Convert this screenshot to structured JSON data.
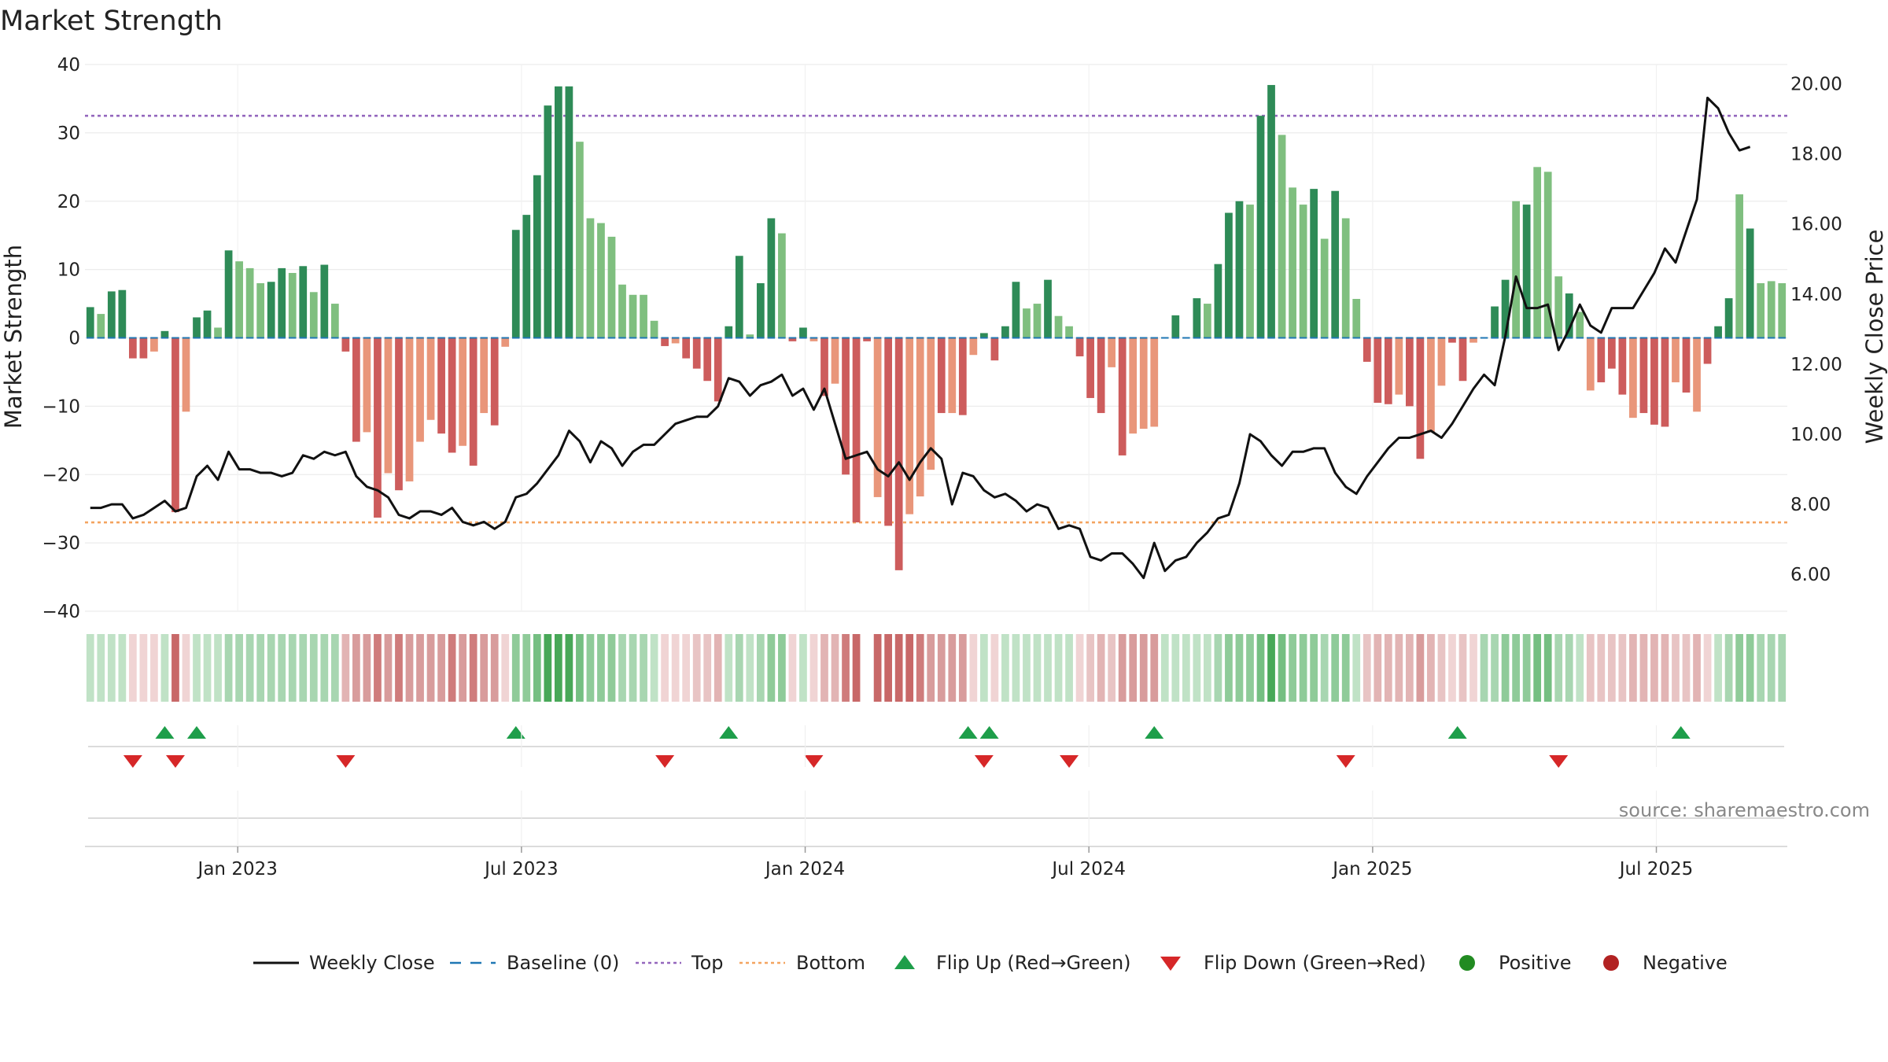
{
  "chart_data": {
    "type": "bar",
    "title": "Market Strength",
    "ylabel_left": "Market Strength",
    "ylabel_right": "Weekly Close Price",
    "ylim_left": [
      -40,
      40
    ],
    "ylim_right": [
      4.95,
      20.55
    ],
    "yticks_left": [
      40,
      30,
      20,
      10,
      0,
      -10,
      -20,
      -30,
      -40
    ],
    "yticks_left_labels": [
      "40",
      "30",
      "20",
      "10",
      "0",
      "−10",
      "−20",
      "−30",
      "−40"
    ],
    "yticks_right": [
      20,
      18,
      16,
      14,
      12,
      10,
      8,
      6
    ],
    "yticks_right_labels": [
      "20.00",
      "18.00",
      "16.00",
      "14.00",
      "12.00",
      "10.00",
      "8.00",
      "6.00"
    ],
    "x_range_weeks": [
      0,
      156
    ],
    "xticks": [
      {
        "label": "Jan 2023",
        "week": 14
      },
      {
        "label": "Jul 2023",
        "week": 40
      },
      {
        "label": "Jan 2024",
        "week": 66
      },
      {
        "label": "Jul 2024",
        "week": 92
      },
      {
        "label": "Jan 2025",
        "week": 118
      },
      {
        "label": "Jul 2025",
        "week": 144
      }
    ],
    "top_line": 32.5,
    "bottom_line": -27,
    "colors": {
      "pos_dark": "#2e8b57",
      "pos_light": "#7fbf7f",
      "neg_dark": "#cd5c5c",
      "neg_light": "#e9967a",
      "close_line": "#111111",
      "baseline": "#1f77b4",
      "top": "#9467bd",
      "bottom": "#f4a460",
      "flip_up": "#1e9e4a",
      "flip_down": "#d62728",
      "positive": "#228b22",
      "negative": "#b22222"
    },
    "strength": [
      4.5,
      3.5,
      6.8,
      7,
      -3,
      -3,
      -2,
      1,
      -25.5,
      -10.8,
      3,
      4,
      1.5,
      12.8,
      11.2,
      10.2,
      8,
      8.2,
      10.2,
      9.5,
      10.5,
      6.7,
      10.7,
      5,
      -2,
      -15.2,
      -13.8,
      -26.3,
      -19.8,
      -22.3,
      -21,
      -15.2,
      -12,
      -14,
      -16.8,
      -15.8,
      -18.7,
      -11,
      -12.8,
      -1.3,
      15.8,
      18,
      23.8,
      34,
      36.8,
      36.8,
      28.7,
      17.5,
      16.8,
      14.8,
      7.8,
      6.3,
      6.3,
      2.5,
      -1.2,
      -0.8,
      -3,
      -4.5,
      -6.3,
      -9.3,
      1.7,
      12,
      0.5,
      8,
      17.5,
      15.3,
      -0.5,
      1.5,
      -0.5,
      -8.5,
      -6.7,
      -20,
      -27,
      -0.5,
      -23.3,
      -27.5,
      -34,
      -25.8,
      -23.2,
      -19.3,
      -11,
      -11,
      -11.3,
      -2.5,
      0.7,
      -3.3,
      1.7,
      8.2,
      4.3,
      5,
      8.5,
      3.2,
      1.7,
      -2.7,
      -8.8,
      -11,
      -4.3,
      -17.2,
      -14,
      -13.3,
      -13,
      0,
      3.3,
      0,
      5.8,
      5,
      10.8,
      18.3,
      20,
      19.5,
      32.5,
      37,
      29.7,
      22,
      19.5,
      21.8,
      14.5,
      21.5,
      17.5,
      5.7,
      -3.5,
      -9.5,
      -9.7,
      -8.3,
      -10,
      -17.7,
      -13.8,
      -7,
      -0.7,
      -6.3,
      -0.7,
      0,
      4.6,
      8.5,
      20,
      19.5,
      25,
      24.3,
      9,
      6.5,
      3.8,
      -7.7,
      -6.5,
      -4.5,
      -8.3,
      -11.7,
      -11,
      -12.7,
      -13,
      -6.5,
      -8,
      -10.8,
      -3.8,
      1.7,
      5.8,
      21,
      16,
      8,
      8.3,
      8
    ],
    "strength_shade": [
      "d",
      "l",
      "d",
      "d",
      "d",
      "d",
      "l",
      "d",
      "d",
      "l",
      "d",
      "d",
      "l",
      "d",
      "l",
      "l",
      "l",
      "d",
      "d",
      "l",
      "d",
      "l",
      "d",
      "l",
      "d",
      "d",
      "l",
      "d",
      "l",
      "d",
      "l",
      "l",
      "l",
      "d",
      "d",
      "l",
      "d",
      "l",
      "d",
      "l",
      "d",
      "d",
      "d",
      "d",
      "d",
      "d",
      "l",
      "l",
      "l",
      "l",
      "l",
      "l",
      "l",
      "l",
      "d",
      "l",
      "d",
      "d",
      "d",
      "d",
      "d",
      "d",
      "l",
      "d",
      "d",
      "l",
      "d",
      "d",
      "l",
      "d",
      "l",
      "d",
      "d",
      "d",
      "l",
      "d",
      "d",
      "l",
      "l",
      "l",
      "d",
      "l",
      "d",
      "l",
      "d",
      "d",
      "d",
      "d",
      "l",
      "l",
      "d",
      "l",
      "l",
      "d",
      "d",
      "d",
      "l",
      "d",
      "l",
      "l",
      "l",
      "d",
      "d",
      "l",
      "d",
      "l",
      "d",
      "d",
      "d",
      "l",
      "d",
      "d",
      "l",
      "l",
      "l",
      "d",
      "l",
      "d",
      "l",
      "l",
      "d",
      "d",
      "d",
      "l",
      "d",
      "d",
      "l",
      "l",
      "d",
      "d",
      "l",
      "d",
      "d",
      "d",
      "l",
      "d",
      "l",
      "l",
      "l",
      "d",
      "l",
      "l",
      "d",
      "d",
      "d",
      "l",
      "d",
      "d",
      "d",
      "l",
      "d",
      "l",
      "d",
      "d",
      "d",
      "l",
      "d",
      "l"
    ],
    "close": [
      7.9,
      7.9,
      8.0,
      8.0,
      7.6,
      7.7,
      7.9,
      8.1,
      7.8,
      7.9,
      8.8,
      9.1,
      8.7,
      9.5,
      9.0,
      9.0,
      8.9,
      8.9,
      8.8,
      8.9,
      9.4,
      9.3,
      9.5,
      9.4,
      9.5,
      8.8,
      8.5,
      8.4,
      8.2,
      7.7,
      7.6,
      7.8,
      7.8,
      7.7,
      7.9,
      7.5,
      7.4,
      7.5,
      7.3,
      7.5,
      8.2,
      8.3,
      8.6,
      9.0,
      9.4,
      10.1,
      9.8,
      9.2,
      9.8,
      9.6,
      9.1,
      9.5,
      9.7,
      9.7,
      10.0,
      10.3,
      10.4,
      10.5,
      10.5,
      10.8,
      11.6,
      11.5,
      11.1,
      11.4,
      11.5,
      11.7,
      11.1,
      11.3,
      10.7,
      11.3,
      10.3,
      9.3,
      9.4,
      9.5,
      9.0,
      8.8,
      9.2,
      8.7,
      9.2,
      9.6,
      9.3,
      8.0,
      8.9,
      8.8,
      8.4,
      8.2,
      8.3,
      8.1,
      7.8,
      8.0,
      7.9,
      7.3,
      7.4,
      7.3,
      6.5,
      6.4,
      6.6,
      6.6,
      6.3,
      5.9,
      6.9,
      6.1,
      6.4,
      6.5,
      6.9,
      7.2,
      7.6,
      7.7,
      8.6,
      10.0,
      9.8,
      9.4,
      9.1,
      9.5,
      9.5,
      9.6,
      9.6,
      8.9,
      8.5,
      8.3,
      8.8,
      9.2,
      9.6,
      9.9,
      9.9,
      10.0,
      10.1,
      9.9,
      10.3,
      10.8,
      11.3,
      11.7,
      11.4,
      12.8,
      14.5,
      13.6,
      13.6,
      13.7,
      12.4,
      13.0,
      13.7,
      13.1,
      12.9,
      13.6,
      13.6,
      13.6,
      14.1,
      14.6,
      15.3,
      14.9,
      15.8,
      16.7,
      19.6,
      19.3,
      18.6,
      18.1,
      18.2
    ],
    "strip_colors": [
      "#c0e2c6",
      "#c0e2c6",
      "#c0e2c6",
      "#c0e2c6",
      "#f0d4d4",
      "#f0d4d4",
      "#f0d4d4",
      "#c0e2c6",
      "#c86868",
      "#f0d4d4",
      "#c0e2c6",
      "#c0e2c6",
      "#c0e2c6",
      "#a8d6b1",
      "#a8d6b1",
      "#a8d6b1",
      "#a8d6b1",
      "#a8d6b1",
      "#a8d6b1",
      "#a8d6b1",
      "#a8d6b1",
      "#a8d6b1",
      "#a8d6b1",
      "#a8d6b1",
      "#e2b4b4",
      "#d89c9c",
      "#d89c9c",
      "#cf7c7c",
      "#d89c9c",
      "#cf7c7c",
      "#d89c9c",
      "#d89c9c",
      "#d89c9c",
      "#d89c9c",
      "#cf7c7c",
      "#d89c9c",
      "#cf7c7c",
      "#d89c9c",
      "#d89c9c",
      "#f0d4d4",
      "#8fcb99",
      "#8fcb99",
      "#75bf82",
      "#48a858",
      "#48a858",
      "#48a858",
      "#75bf82",
      "#8fcb99",
      "#8fcb99",
      "#8fcb99",
      "#a8d6b1",
      "#a8d6b1",
      "#a8d6b1",
      "#c0e2c6",
      "#f0d4d4",
      "#f0d4d4",
      "#f0d4d4",
      "#e8c4c4",
      "#e8c4c4",
      "#e2b4b4",
      "#c0e2c6",
      "#a8d6b1",
      "#c0e2c6",
      "#a8d6b1",
      "#8fcb99",
      "#8fcb99",
      "#f0d4d4",
      "#c0e2c6",
      "#f0d4d4",
      "#e2b4b4",
      "#e2b4b4",
      "#cf7c7c",
      "#c86868",
      "#ffffff",
      "#c86868",
      "#c86868",
      "#c86868",
      "#c86868",
      "#cf7c7c",
      "#d89c9c",
      "#d89c9c",
      "#d89c9c",
      "#d89c9c",
      "#f0d4d4",
      "#c0e2c6",
      "#f0d4d4",
      "#c0e2c6",
      "#c0e2c6",
      "#c0e2c6",
      "#c0e2c6",
      "#c0e2c6",
      "#c0e2c6",
      "#c0e2c6",
      "#f0d4d4",
      "#e8c4c4",
      "#e2b4b4",
      "#e8c4c4",
      "#d89c9c",
      "#d89c9c",
      "#d89c9c",
      "#d89c9c",
      "#c0e2c6",
      "#c0e2c6",
      "#c0e2c6",
      "#c0e2c6",
      "#c0e2c6",
      "#a8d6b1",
      "#8fcb99",
      "#8fcb99",
      "#8fcb99",
      "#75bf82",
      "#48a858",
      "#75bf82",
      "#8fcb99",
      "#8fcb99",
      "#8fcb99",
      "#a8d6b1",
      "#8fcb99",
      "#8fcb99",
      "#c0e2c6",
      "#e8c4c4",
      "#e2b4b4",
      "#e2b4b4",
      "#e2b4b4",
      "#e2b4b4",
      "#d89c9c",
      "#e2b4b4",
      "#e8c4c4",
      "#f0d4d4",
      "#e8c4c4",
      "#f0d4d4",
      "#a8d6b1",
      "#a8d6b1",
      "#8fcb99",
      "#8fcb99",
      "#8fcb99",
      "#75bf82",
      "#75bf82",
      "#a8d6b1",
      "#a8d6b1",
      "#c0e2c6",
      "#e8c4c4",
      "#e8c4c4",
      "#e8c4c4",
      "#e8c4c4",
      "#e2b4b4",
      "#e2b4b4",
      "#e2b4b4",
      "#e2b4b4",
      "#e8c4c4",
      "#e8c4c4",
      "#e2b4b4",
      "#f0d4d4",
      "#c0e2c6",
      "#a8d6b1",
      "#8fcb99",
      "#8fcb99",
      "#a8d6b1",
      "#a8d6b1",
      "#a8d6b1"
    ],
    "flip_up_weeks": [
      7.5,
      10.5,
      40.5,
      60.5,
      83,
      85,
      100.5,
      129,
      150
    ],
    "flip_down_weeks": [
      4.5,
      8.5,
      24.5,
      54.5,
      68.5,
      84.5,
      92.5,
      118.5,
      138.5
    ],
    "legend": [
      {
        "label": "Weekly Close",
        "kind": "line"
      },
      {
        "label": "Baseline (0)",
        "kind": "dash"
      },
      {
        "label": "Top",
        "kind": "dot-top"
      },
      {
        "label": "Bottom",
        "kind": "dot-bottom"
      },
      {
        "label": "Flip Up (Red→Green)",
        "kind": "tri-up"
      },
      {
        "label": "Flip Down (Green→Red)",
        "kind": "tri-down"
      },
      {
        "label": "Positive",
        "kind": "circle-pos"
      },
      {
        "label": "Negative",
        "kind": "circle-neg"
      }
    ],
    "source": "source: sharemaestro.com"
  }
}
